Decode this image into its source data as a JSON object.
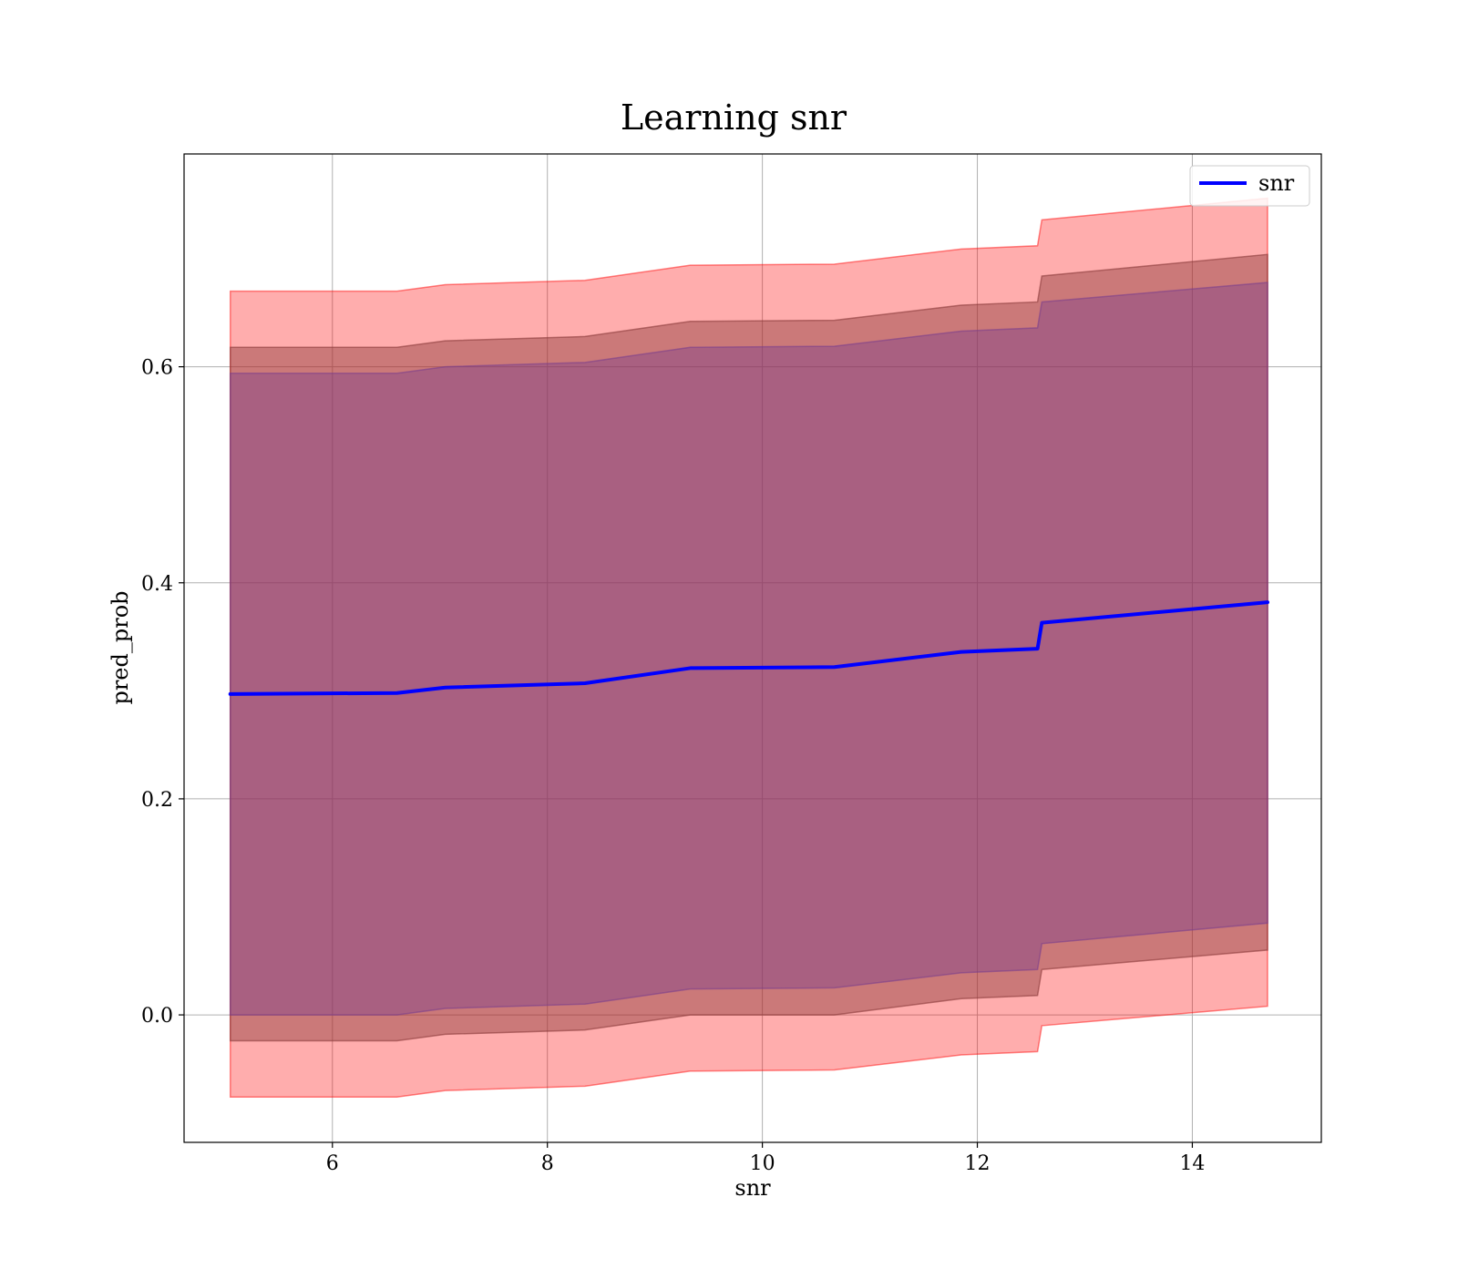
{
  "chart_data": {
    "type": "line",
    "title": "Learning snr",
    "xlabel": "snr",
    "ylabel": "pred_prob",
    "xlim": [
      4.62,
      15.2
    ],
    "ylim": [
      -0.118,
      0.797
    ],
    "x_ticks": [
      6,
      8,
      10,
      12,
      14
    ],
    "x_tick_labels": [
      "6",
      "8",
      "10",
      "12",
      "14"
    ],
    "y_ticks": [
      0.0,
      0.2,
      0.4,
      0.6
    ],
    "y_tick_labels": [
      "0.0",
      "0.2",
      "0.4",
      "0.6"
    ],
    "grid": true,
    "legend_position": "top-right",
    "x": [
      5.05,
      6.6,
      7.05,
      8.35,
      9.33,
      10.67,
      11.85,
      12.56,
      12.6,
      14.7
    ],
    "series": [
      {
        "name": "snr",
        "color": "#0000ff",
        "values": [
          0.297,
          0.298,
          0.303,
          0.307,
          0.321,
          0.322,
          0.336,
          0.339,
          0.363,
          0.382
        ]
      }
    ],
    "bands": [
      {
        "color": "#ff0000",
        "opacity": 0.32,
        "lower": [
          -0.076,
          -0.076,
          -0.07,
          -0.066,
          -0.052,
          -0.051,
          -0.037,
          -0.034,
          -0.01,
          0.008
        ],
        "upper": [
          0.67,
          0.67,
          0.676,
          0.68,
          0.694,
          0.695,
          0.709,
          0.712,
          0.736,
          0.756
        ]
      },
      {
        "color": "#8b3a3a",
        "opacity": 0.45,
        "lower": [
          -0.024,
          -0.024,
          -0.018,
          -0.014,
          0.0,
          0.0,
          0.015,
          0.018,
          0.042,
          0.06
        ],
        "upper": [
          0.618,
          0.618,
          0.624,
          0.628,
          0.642,
          0.643,
          0.657,
          0.66,
          0.684,
          0.704
        ]
      },
      {
        "color": "#7a3e8c",
        "opacity": 0.42,
        "lower": [
          0.0,
          0.0,
          0.006,
          0.01,
          0.024,
          0.025,
          0.039,
          0.042,
          0.066,
          0.085
        ],
        "upper": [
          0.594,
          0.594,
          0.6,
          0.604,
          0.618,
          0.619,
          0.633,
          0.636,
          0.66,
          0.678
        ]
      }
    ]
  }
}
